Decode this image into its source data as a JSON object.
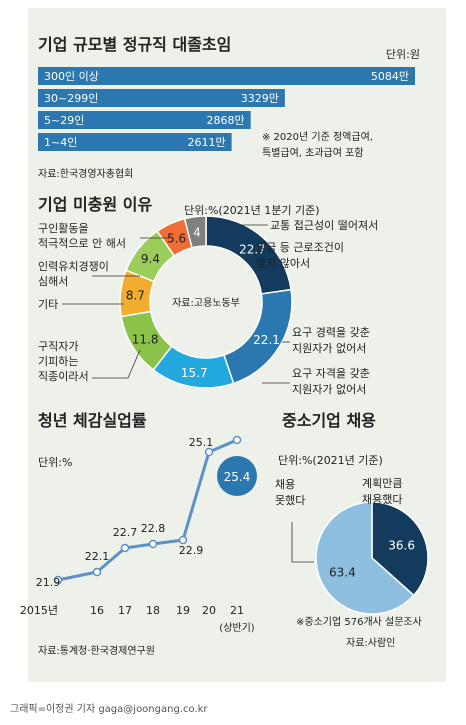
{
  "colors": {
    "panel_bg": "#eef0ea",
    "bar": "#2b78b1",
    "text": "#222222",
    "donut": [
      "#123b5d",
      "#2b78b1",
      "#23a9de",
      "#8bc34a",
      "#f0ad2e",
      "#f06d34",
      "#7f7f7f"
    ],
    "line": "#5b91c8",
    "marker_fill": "#ffffff",
    "callout_fill": "#2b78b1",
    "pie": [
      "#123b5d",
      "#8ebfe0"
    ]
  },
  "credit": "그래픽=이정권 기자 gaga@joongang.co.kr",
  "chart_data": [
    {
      "type": "bar",
      "title": "기업 규모별 정규직 대졸초임",
      "unit": "단위:원",
      "categories": [
        "300인 이상",
        "30~299인",
        "5~29인",
        "1~4인"
      ],
      "values": [
        5084,
        3329,
        2868,
        2611
      ],
      "value_labels": [
        "5084만",
        "3329만",
        "2868만",
        "2611만"
      ],
      "note": [
        "※ 2020년 기준 정액급여,",
        "특별급여, 초과급여 포함"
      ],
      "source": "자료:한국경영자총협회"
    },
    {
      "type": "pie",
      "title": "기업 미충원 이유",
      "unit": "단위:%(2021년 1분기 기준)",
      "center_label": "자료:고용노동부",
      "slices": [
        {
          "value": 22.7,
          "label": "22.7",
          "text": [
            "임금 등 근로조건이",
            "맞지 않아서"
          ]
        },
        {
          "value": 22.1,
          "label": "22.1",
          "text": [
            "요구 경력을 갖춘",
            "지원자가 없어서"
          ]
        },
        {
          "value": 15.7,
          "label": "15.7",
          "text": [
            "요구 자격을 갖춘",
            "지원자가 없어서"
          ]
        },
        {
          "value": 11.8,
          "label": "11.8",
          "text": [
            "구직자가",
            "기피하는",
            "직종이라서"
          ]
        },
        {
          "value": 8.7,
          "label": "8.7",
          "text": [
            "인력유치경쟁이",
            "심해서"
          ]
        },
        {
          "value": 9.4,
          "label": "9.4",
          "text": [
            "기타"
          ]
        },
        {
          "value": 5.6,
          "label": "5.6",
          "text": [
            "구인활동을",
            "적극적으로 안 해서"
          ]
        },
        {
          "value": 4,
          "label": "4",
          "text": [
            "교통 접근성이 떨어져서"
          ]
        }
      ]
    },
    {
      "type": "line",
      "title": "청년 체감실업률",
      "unit": "단위:%",
      "x": [
        "2015년",
        "16",
        "17",
        "18",
        "19",
        "20",
        "21"
      ],
      "x_sub": "(상반기)",
      "values": [
        21.9,
        22.1,
        22.7,
        22.8,
        22.9,
        25.1,
        25.4
      ],
      "source": "자료:통계청·한국경제연구원"
    },
    {
      "type": "pie",
      "title": "중소기업 채용",
      "unit": "단위:%(2021년 기준)",
      "slices": [
        {
          "value": 36.6,
          "label": "36.6",
          "text": [
            "계획만큼",
            "채용했다"
          ]
        },
        {
          "value": 63.4,
          "label": "63.4",
          "text": [
            "채용",
            "못했다"
          ]
        }
      ],
      "note": "※중소기업 576개사 설문조사",
      "source": "자료:사람인"
    }
  ]
}
